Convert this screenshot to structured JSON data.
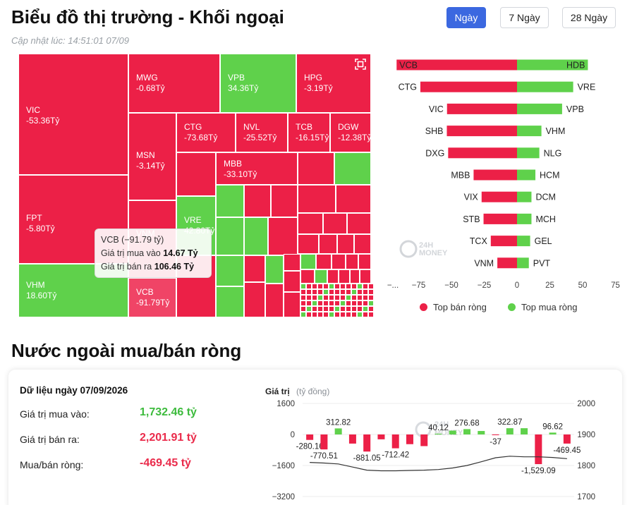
{
  "header": {
    "title": "Biểu đồ thị trường - Khối ngoại",
    "updated": "Cập nhật lúc: 14:51:01 07/09",
    "ranges": [
      "Ngày",
      "7 Ngày",
      "28 Ngày"
    ],
    "active_range": "Ngày"
  },
  "colors": {
    "sell": "#ec2047",
    "buy": "#5fd14b",
    "accent": "#3b68e0"
  },
  "treemap": {
    "labeled_cells": [
      {
        "ticker": "VIC",
        "value": "-53.36Tỷ",
        "side": "sell"
      },
      {
        "ticker": "FPT",
        "value": "-5.80Tỷ",
        "side": "sell"
      },
      {
        "ticker": "VHM",
        "value": "18.60Tỷ",
        "side": "buy"
      },
      {
        "ticker": "MWG",
        "value": "-0.68Tỷ",
        "side": "sell"
      },
      {
        "ticker": "VPB",
        "value": "34.36Tỷ",
        "side": "buy"
      },
      {
        "ticker": "HPG",
        "value": "-3.19Tỷ",
        "side": "sell"
      },
      {
        "ticker": "MSN",
        "value": "-3.14Tỷ",
        "side": "sell"
      },
      {
        "ticker": "CTG",
        "value": "-73.68Tỷ",
        "side": "sell"
      },
      {
        "ticker": "NVL",
        "value": "-25.52Tỷ",
        "side": "sell"
      },
      {
        "ticker": "TCB",
        "value": "-16.15Tỷ",
        "side": "sell"
      },
      {
        "ticker": "DGW",
        "value": "-12.38Tỷ",
        "side": "sell"
      },
      {
        "ticker": "MBB",
        "value": "-33.10Tỷ",
        "side": "sell"
      },
      {
        "ticker": "VRE",
        "value": "42.80Tỷ",
        "side": "buy"
      },
      {
        "ticker": "VNM",
        "value": "",
        "side": "sell"
      },
      {
        "ticker": "VCB",
        "value": "-91.79Tỷ",
        "side": "sell"
      }
    ],
    "tooltip": {
      "title": "VCB (−91.79 tỷ)",
      "buy_label": "Giá trị mua vào",
      "buy_value": "14.67 Tỷ",
      "sell_label": "Giá trị bán ra",
      "sell_value": "106.46 Tỷ"
    }
  },
  "top_bars": {
    "sell_legend": "Top bán ròng",
    "buy_legend": "Top mua ròng",
    "ticks": [
      "−...",
      "−75",
      "−50",
      "−25",
      "0",
      "25",
      "50",
      "75"
    ],
    "watermark": [
      "24H",
      "MONEY"
    ],
    "chart_data": {
      "type": "bar",
      "orientation": "horizontal",
      "xlim": [
        -100,
        75
      ],
      "sell": [
        {
          "ticker": "VCB",
          "value": -91.79
        },
        {
          "ticker": "CTG",
          "value": -73.68
        },
        {
          "ticker": "VIC",
          "value": -53.36
        },
        {
          "ticker": "SHB",
          "value": -53.5
        },
        {
          "ticker": "DXG",
          "value": -52.5
        },
        {
          "ticker": "MBB",
          "value": -33.1
        },
        {
          "ticker": "VIX",
          "value": -27
        },
        {
          "ticker": "STB",
          "value": -25.52
        },
        {
          "ticker": "TCX",
          "value": -20
        },
        {
          "ticker": "VNM",
          "value": -15
        }
      ],
      "buy": [
        {
          "ticker": "HDB",
          "value": 54
        },
        {
          "ticker": "VRE",
          "value": 42.8
        },
        {
          "ticker": "VPB",
          "value": 34.36
        },
        {
          "ticker": "VHM",
          "value": 18.6
        },
        {
          "ticker": "NLG",
          "value": 17
        },
        {
          "ticker": "HCM",
          "value": 14
        },
        {
          "ticker": "DCM",
          "value": 11
        },
        {
          "ticker": "MCH",
          "value": 11
        },
        {
          "ticker": "GEL",
          "value": 10
        },
        {
          "ticker": "PVT",
          "value": 9
        }
      ]
    }
  },
  "net": {
    "section_title": "Nước ngoài mua/bán ròng",
    "date_label": "Dữ liệu ngày 07/09/2026",
    "rows": [
      {
        "label": "Giá trị mua vào:",
        "value": "1,732.46 tỷ",
        "tone": "green"
      },
      {
        "label": "Giá trị bán ra:",
        "value": "2,201.91 tỷ",
        "tone": "red"
      },
      {
        "label": "Mua/bán ròng:",
        "value": "-469.45 tỷ",
        "tone": "red"
      }
    ],
    "chart_data": {
      "type": "bar",
      "ylabel": "Giá trị",
      "ylabel_unit": "(tỷ đồng)",
      "left_ticks": [
        "1600",
        "0",
        "−1600",
        "−3200"
      ],
      "right_ticks": [
        "2000",
        "1900",
        "1800",
        "1700"
      ],
      "ylim": [
        -3200,
        1600
      ],
      "y2lim": [
        1700,
        2000
      ],
      "values": [
        -280.16,
        -770.51,
        312.82,
        -470,
        -881.05,
        -250,
        -712.42,
        -500,
        -600,
        40.12,
        200,
        276.68,
        180,
        -37,
        322.87,
        322.87,
        -1529.09,
        96.62,
        -469.45
      ],
      "labels": [
        "-280.16",
        "-770.51",
        "312.82",
        "",
        "-881.05",
        "",
        "-712.42",
        "",
        "",
        "40.12",
        "",
        "276.68",
        "",
        "-37",
        "322.87",
        "",
        "-1,529.09",
        "96.62",
        "-469.45"
      ],
      "index_line": [
        1810,
        1808,
        1805,
        1795,
        1785,
        1783,
        1783,
        1784,
        1785,
        1787,
        1792,
        1800,
        1812,
        1825,
        1830,
        1828,
        1828,
        1826,
        1822
      ]
    }
  }
}
